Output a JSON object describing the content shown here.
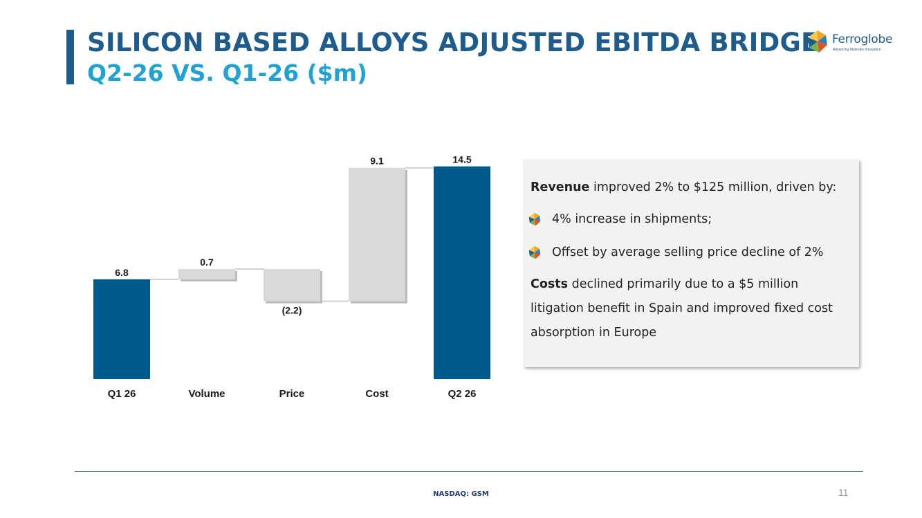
{
  "header": {
    "title": "SILICON BASED ALLOYS ADJUSTED EBITDA BRIDGE",
    "subtitle": "Q2-26 VS. Q1-26 ($m)"
  },
  "logo": {
    "name": "Ferroglobe",
    "tagline": "Advancing Materials Innovation"
  },
  "colors": {
    "primary": "#1d5c8c",
    "accent": "#1fa3d4",
    "total_bar": "#005b8c",
    "delta_bar": "#d9d9d9"
  },
  "chart_data": {
    "type": "bar",
    "subtype": "waterfall",
    "categories": [
      "Q1 26",
      "Volume",
      "Price",
      "Cost",
      "Q2 26"
    ],
    "values": [
      6.8,
      0.7,
      -2.2,
      9.1,
      14.5
    ],
    "bar_kinds": [
      "total",
      "delta",
      "delta",
      "delta",
      "total"
    ],
    "value_labels": [
      "6.8",
      "0.7",
      "(2.2)",
      "9.1",
      "14.5"
    ],
    "title": "",
    "xlabel": "",
    "ylabel": "",
    "ylim": [
      0,
      14.5
    ],
    "grid": false,
    "legend": "none"
  },
  "textbox": {
    "revenue_bold": "Revenue",
    "revenue_rest": " improved 2% to $125 million, driven by:",
    "bullets": [
      "4% increase in shipments;",
      "Offset by average selling price decline of 2%"
    ],
    "costs_bold": "Costs",
    "costs_rest": " declined primarily due to a $5 million litigation benefit in Spain and improved fixed cost absorption in Europe"
  },
  "footer": {
    "ticker": "NASDAQ: GSM",
    "page_number": "11"
  }
}
